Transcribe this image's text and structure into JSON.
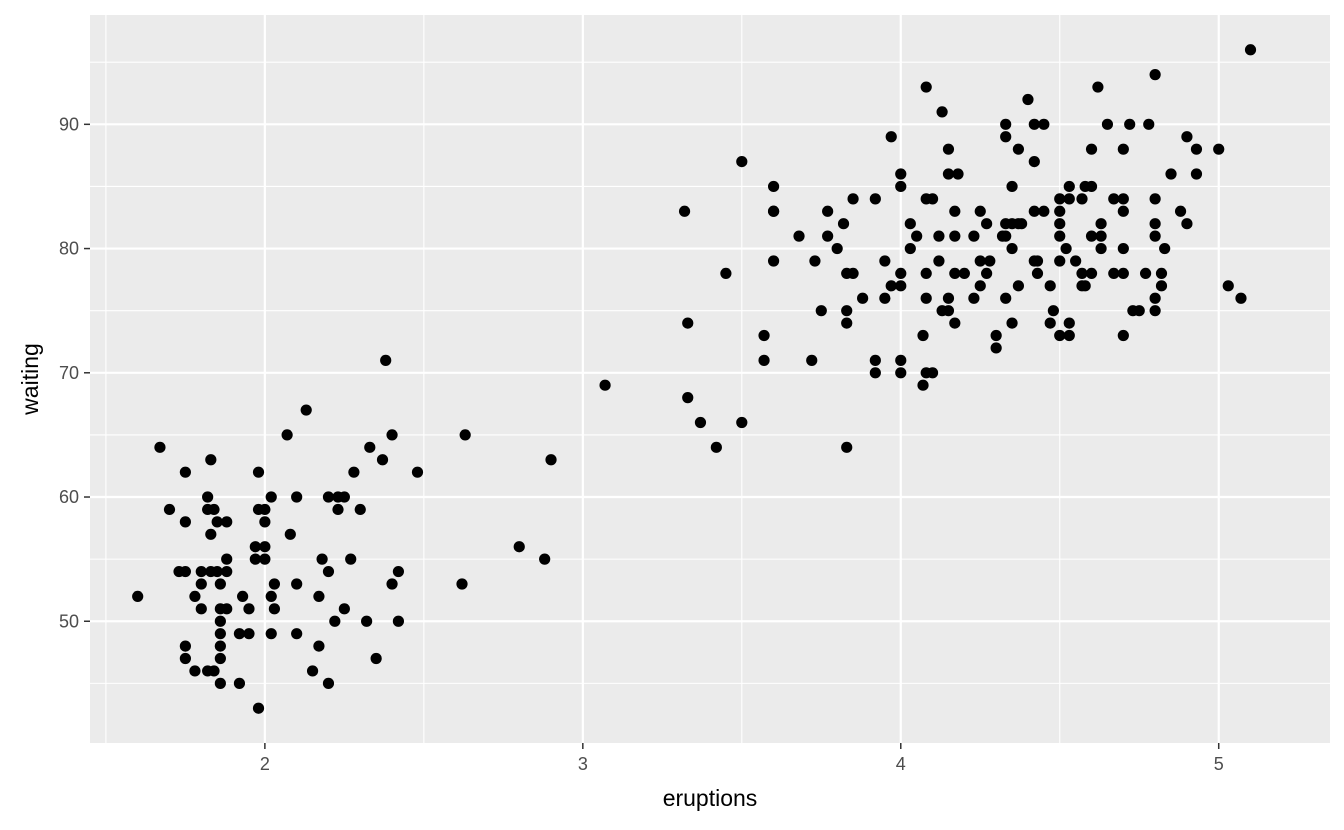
{
  "chart_data": {
    "type": "scatter",
    "title": "",
    "xlabel": "eruptions",
    "ylabel": "waiting",
    "xlim": [
      1.45,
      5.35
    ],
    "ylim": [
      40.2,
      98.8
    ],
    "x_ticks": [
      2,
      3,
      4,
      5
    ],
    "x_tick_labels": [
      "2",
      "3",
      "4",
      "5"
    ],
    "y_ticks": [
      50,
      60,
      70,
      80,
      90
    ],
    "y_tick_labels": [
      "50",
      "60",
      "70",
      "80",
      "90"
    ],
    "grid": true,
    "legend": "none",
    "colors": {
      "panel": "#ebebeb",
      "grid": "#ffffff",
      "point": "#000000",
      "tick_text": "#4d4d4d",
      "tick_mark": "#333333"
    },
    "points": [
      [
        1.6,
        52
      ],
      [
        1.67,
        64
      ],
      [
        1.7,
        59
      ],
      [
        1.73,
        54
      ],
      [
        1.75,
        54
      ],
      [
        1.75,
        58
      ],
      [
        1.75,
        62
      ],
      [
        1.75,
        48
      ],
      [
        1.75,
        47
      ],
      [
        1.78,
        52
      ],
      [
        1.8,
        53
      ],
      [
        1.8,
        51
      ],
      [
        1.8,
        54
      ],
      [
        1.78,
        46
      ],
      [
        1.82,
        60
      ],
      [
        1.82,
        59
      ],
      [
        1.82,
        46
      ],
      [
        1.83,
        63
      ],
      [
        1.83,
        57
      ],
      [
        1.83,
        54
      ],
      [
        1.84,
        59
      ],
      [
        1.84,
        46
      ],
      [
        1.85,
        58
      ],
      [
        1.85,
        54
      ],
      [
        1.86,
        53
      ],
      [
        1.86,
        51
      ],
      [
        1.86,
        50
      ],
      [
        1.86,
        49
      ],
      [
        1.86,
        48
      ],
      [
        1.86,
        47
      ],
      [
        1.86,
        45
      ],
      [
        1.88,
        58
      ],
      [
        1.88,
        55
      ],
      [
        1.88,
        54
      ],
      [
        1.88,
        51
      ],
      [
        1.92,
        49
      ],
      [
        1.92,
        45
      ],
      [
        1.93,
        52
      ],
      [
        1.95,
        49
      ],
      [
        1.95,
        51
      ],
      [
        1.97,
        56
      ],
      [
        1.97,
        55
      ],
      [
        1.98,
        62
      ],
      [
        1.98,
        59
      ],
      [
        1.98,
        43
      ],
      [
        2.0,
        59
      ],
      [
        2.0,
        56
      ],
      [
        2.0,
        58
      ],
      [
        2.0,
        55
      ],
      [
        2.02,
        60
      ],
      [
        2.02,
        52
      ],
      [
        2.02,
        49
      ],
      [
        2.03,
        53
      ],
      [
        2.03,
        51
      ],
      [
        2.07,
        65
      ],
      [
        2.08,
        57
      ],
      [
        2.1,
        60
      ],
      [
        2.1,
        53
      ],
      [
        2.1,
        49
      ],
      [
        2.13,
        67
      ],
      [
        2.15,
        46
      ],
      [
        2.17,
        52
      ],
      [
        2.17,
        48
      ],
      [
        2.18,
        55
      ],
      [
        2.2,
        60
      ],
      [
        2.2,
        54
      ],
      [
        2.2,
        45
      ],
      [
        2.22,
        50
      ],
      [
        2.23,
        60
      ],
      [
        2.23,
        59
      ],
      [
        2.25,
        60
      ],
      [
        2.25,
        51
      ],
      [
        2.27,
        55
      ],
      [
        2.28,
        62
      ],
      [
        2.3,
        59
      ],
      [
        2.32,
        50
      ],
      [
        2.33,
        64
      ],
      [
        2.35,
        47
      ],
      [
        2.37,
        63
      ],
      [
        2.38,
        71
      ],
      [
        2.4,
        65
      ],
      [
        2.4,
        53
      ],
      [
        2.42,
        54
      ],
      [
        2.42,
        50
      ],
      [
        2.48,
        62
      ],
      [
        2.62,
        53
      ],
      [
        2.63,
        65
      ],
      [
        2.8,
        56
      ],
      [
        2.88,
        55
      ],
      [
        2.9,
        63
      ],
      [
        3.07,
        69
      ],
      [
        3.32,
        83
      ],
      [
        3.33,
        74
      ],
      [
        3.33,
        68
      ],
      [
        3.37,
        66
      ],
      [
        3.42,
        64
      ],
      [
        3.45,
        78
      ],
      [
        3.5,
        87
      ],
      [
        3.5,
        66
      ],
      [
        3.57,
        73
      ],
      [
        3.57,
        71
      ],
      [
        3.6,
        85
      ],
      [
        3.6,
        83
      ],
      [
        3.6,
        83
      ],
      [
        3.6,
        79
      ],
      [
        3.68,
        81
      ],
      [
        3.72,
        71
      ],
      [
        3.73,
        79
      ],
      [
        3.75,
        75
      ],
      [
        3.77,
        83
      ],
      [
        3.77,
        81
      ],
      [
        3.8,
        80
      ],
      [
        3.82,
        82
      ],
      [
        3.83,
        78
      ],
      [
        3.83,
        75
      ],
      [
        3.83,
        74
      ],
      [
        3.83,
        64
      ],
      [
        3.85,
        84
      ],
      [
        3.85,
        78
      ],
      [
        3.88,
        76
      ],
      [
        3.92,
        84
      ],
      [
        3.92,
        71
      ],
      [
        3.92,
        70
      ],
      [
        3.95,
        79
      ],
      [
        3.95,
        76
      ],
      [
        3.97,
        89
      ],
      [
        3.97,
        77
      ],
      [
        4.0,
        86
      ],
      [
        4.0,
        85
      ],
      [
        4.0,
        78
      ],
      [
        4.0,
        77
      ],
      [
        4.0,
        71
      ],
      [
        4.0,
        70
      ],
      [
        4.03,
        82
      ],
      [
        4.03,
        80
      ],
      [
        4.05,
        81
      ],
      [
        4.07,
        73
      ],
      [
        4.07,
        69
      ],
      [
        4.08,
        93
      ],
      [
        4.08,
        84
      ],
      [
        4.08,
        78
      ],
      [
        4.08,
        76
      ],
      [
        4.08,
        70
      ],
      [
        4.1,
        84
      ],
      [
        4.1,
        70
      ],
      [
        4.12,
        81
      ],
      [
        4.12,
        79
      ],
      [
        4.13,
        75
      ],
      [
        4.13,
        91
      ],
      [
        4.15,
        88
      ],
      [
        4.15,
        86
      ],
      [
        4.15,
        76
      ],
      [
        4.15,
        75
      ],
      [
        4.17,
        83
      ],
      [
        4.17,
        81
      ],
      [
        4.17,
        78
      ],
      [
        4.17,
        74
      ],
      [
        4.18,
        86
      ],
      [
        4.2,
        78
      ],
      [
        4.23,
        81
      ],
      [
        4.23,
        76
      ],
      [
        4.25,
        83
      ],
      [
        4.25,
        79
      ],
      [
        4.25,
        77
      ],
      [
        4.27,
        82
      ],
      [
        4.27,
        78
      ],
      [
        4.28,
        79
      ],
      [
        4.3,
        73
      ],
      [
        4.3,
        72
      ],
      [
        4.32,
        81
      ],
      [
        4.33,
        90
      ],
      [
        4.33,
        89
      ],
      [
        4.33,
        82
      ],
      [
        4.33,
        81
      ],
      [
        4.33,
        76
      ],
      [
        4.35,
        85
      ],
      [
        4.35,
        82
      ],
      [
        4.35,
        80
      ],
      [
        4.35,
        74
      ],
      [
        4.37,
        88
      ],
      [
        4.37,
        82
      ],
      [
        4.37,
        77
      ],
      [
        4.38,
        82
      ],
      [
        4.4,
        92
      ],
      [
        4.42,
        90
      ],
      [
        4.42,
        87
      ],
      [
        4.42,
        83
      ],
      [
        4.42,
        79
      ],
      [
        4.43,
        79
      ],
      [
        4.43,
        78
      ],
      [
        4.45,
        90
      ],
      [
        4.45,
        83
      ],
      [
        4.47,
        77
      ],
      [
        4.47,
        74
      ],
      [
        4.48,
        75
      ],
      [
        4.5,
        84
      ],
      [
        4.5,
        83
      ],
      [
        4.5,
        82
      ],
      [
        4.5,
        81
      ],
      [
        4.5,
        79
      ],
      [
        4.5,
        73
      ],
      [
        4.52,
        80
      ],
      [
        4.53,
        85
      ],
      [
        4.53,
        84
      ],
      [
        4.53,
        74
      ],
      [
        4.53,
        73
      ],
      [
        4.55,
        79
      ],
      [
        4.57,
        84
      ],
      [
        4.57,
        78
      ],
      [
        4.57,
        77
      ],
      [
        4.58,
        85
      ],
      [
        4.58,
        77
      ],
      [
        4.6,
        85
      ],
      [
        4.6,
        88
      ],
      [
        4.6,
        81
      ],
      [
        4.6,
        78
      ],
      [
        4.62,
        93
      ],
      [
        4.63,
        82
      ],
      [
        4.63,
        81
      ],
      [
        4.63,
        80
      ],
      [
        4.65,
        90
      ],
      [
        4.67,
        84
      ],
      [
        4.67,
        78
      ],
      [
        4.7,
        88
      ],
      [
        4.7,
        84
      ],
      [
        4.7,
        83
      ],
      [
        4.7,
        80
      ],
      [
        4.7,
        78
      ],
      [
        4.7,
        73
      ],
      [
        4.72,
        90
      ],
      [
        4.73,
        75
      ],
      [
        4.75,
        75
      ],
      [
        4.77,
        78
      ],
      [
        4.78,
        90
      ],
      [
        4.8,
        94
      ],
      [
        4.8,
        84
      ],
      [
        4.8,
        82
      ],
      [
        4.8,
        81
      ],
      [
        4.8,
        76
      ],
      [
        4.8,
        75
      ],
      [
        4.82,
        78
      ],
      [
        4.82,
        77
      ],
      [
        4.83,
        80
      ],
      [
        4.85,
        86
      ],
      [
        4.88,
        83
      ],
      [
        4.9,
        89
      ],
      [
        4.9,
        82
      ],
      [
        4.93,
        88
      ],
      [
        4.93,
        86
      ],
      [
        5.0,
        88
      ],
      [
        5.03,
        77
      ],
      [
        5.07,
        76
      ],
      [
        5.1,
        96
      ]
    ]
  }
}
